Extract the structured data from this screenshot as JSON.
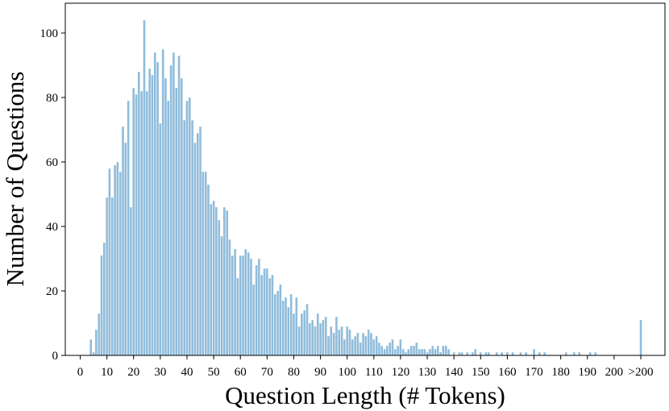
{
  "chart_data": {
    "type": "bar",
    "title": "",
    "xlabel": "Question Length (# Tokens)",
    "ylabel": "Number of Questions",
    "bar_color": "#8fbcdb",
    "bar_edge_color": "#ffffff",
    "grid": false,
    "xlim": [
      -3,
      206
    ],
    "ylim": [
      0,
      105
    ],
    "x_ticks": [
      {
        "value": 0,
        "label": "0"
      },
      {
        "value": 10,
        "label": "10"
      },
      {
        "value": 20,
        "label": "20"
      },
      {
        "value": 30,
        "label": "30"
      },
      {
        "value": 40,
        "label": "40"
      },
      {
        "value": 50,
        "label": "50"
      },
      {
        "value": 60,
        "label": "60"
      },
      {
        "value": 70,
        "label": "70"
      },
      {
        "value": 80,
        "label": "80"
      },
      {
        "value": 90,
        "label": "90"
      },
      {
        "value": 100,
        "label": "100"
      },
      {
        "value": 110,
        "label": "110"
      },
      {
        "value": 120,
        "label": "120"
      },
      {
        "value": 130,
        "label": "130"
      },
      {
        "value": 140,
        "label": "140"
      },
      {
        "value": 150,
        "label": "150"
      },
      {
        "value": 160,
        "label": "160"
      },
      {
        "value": 170,
        "label": "170"
      },
      {
        "value": 180,
        "label": "180"
      },
      {
        "value": 190,
        "label": "190"
      },
      {
        "value": 200,
        "label": "200"
      },
      {
        "value": 210,
        "label": ">200"
      }
    ],
    "y_ticks": [
      0,
      20,
      40,
      60,
      80,
      100
    ],
    "data": [
      [
        4,
        5
      ],
      [
        5,
        1
      ],
      [
        6,
        8
      ],
      [
        7,
        13
      ],
      [
        8,
        31
      ],
      [
        9,
        35
      ],
      [
        10,
        49
      ],
      [
        11,
        58
      ],
      [
        12,
        49
      ],
      [
        13,
        59
      ],
      [
        14,
        60
      ],
      [
        15,
        57
      ],
      [
        16,
        71
      ],
      [
        17,
        66
      ],
      [
        18,
        79
      ],
      [
        19,
        46
      ],
      [
        20,
        83
      ],
      [
        21,
        81
      ],
      [
        22,
        88
      ],
      [
        23,
        82
      ],
      [
        24,
        104
      ],
      [
        25,
        82
      ],
      [
        26,
        89
      ],
      [
        27,
        87
      ],
      [
        28,
        94
      ],
      [
        29,
        91
      ],
      [
        30,
        72
      ],
      [
        31,
        95
      ],
      [
        32,
        86
      ],
      [
        33,
        79
      ],
      [
        34,
        90
      ],
      [
        35,
        94
      ],
      [
        36,
        83
      ],
      [
        37,
        93
      ],
      [
        38,
        86
      ],
      [
        39,
        73
      ],
      [
        40,
        79
      ],
      [
        41,
        80
      ],
      [
        42,
        73
      ],
      [
        43,
        66
      ],
      [
        44,
        69
      ],
      [
        45,
        71
      ],
      [
        46,
        57
      ],
      [
        47,
        57
      ],
      [
        48,
        53
      ],
      [
        49,
        47
      ],
      [
        50,
        48
      ],
      [
        51,
        46
      ],
      [
        52,
        42
      ],
      [
        53,
        37
      ],
      [
        54,
        46
      ],
      [
        55,
        45
      ],
      [
        56,
        36
      ],
      [
        57,
        31
      ],
      [
        58,
        33
      ],
      [
        59,
        24
      ],
      [
        60,
        31
      ],
      [
        61,
        31
      ],
      [
        62,
        33
      ],
      [
        63,
        32
      ],
      [
        64,
        30
      ],
      [
        65,
        22
      ],
      [
        66,
        28
      ],
      [
        67,
        30
      ],
      [
        68,
        25
      ],
      [
        69,
        27
      ],
      [
        70,
        27
      ],
      [
        71,
        24
      ],
      [
        72,
        25
      ],
      [
        73,
        19
      ],
      [
        74,
        20
      ],
      [
        75,
        22
      ],
      [
        76,
        17
      ],
      [
        77,
        18
      ],
      [
        78,
        15
      ],
      [
        79,
        19
      ],
      [
        80,
        13
      ],
      [
        81,
        18
      ],
      [
        82,
        9
      ],
      [
        83,
        13
      ],
      [
        84,
        14
      ],
      [
        85,
        16
      ],
      [
        86,
        10
      ],
      [
        87,
        11
      ],
      [
        88,
        9
      ],
      [
        89,
        13
      ],
      [
        90,
        10
      ],
      [
        91,
        11
      ],
      [
        92,
        12
      ],
      [
        93,
        6
      ],
      [
        94,
        9
      ],
      [
        95,
        7
      ],
      [
        96,
        12
      ],
      [
        97,
        8
      ],
      [
        98,
        9
      ],
      [
        99,
        5
      ],
      [
        100,
        9
      ],
      [
        101,
        8
      ],
      [
        102,
        5
      ],
      [
        103,
        6
      ],
      [
        104,
        7
      ],
      [
        105,
        4
      ],
      [
        106,
        7
      ],
      [
        107,
        6
      ],
      [
        108,
        8
      ],
      [
        109,
        7
      ],
      [
        110,
        5
      ],
      [
        111,
        6
      ],
      [
        112,
        4
      ],
      [
        113,
        3
      ],
      [
        114,
        2
      ],
      [
        115,
        3
      ],
      [
        116,
        4
      ],
      [
        117,
        5
      ],
      [
        118,
        2
      ],
      [
        119,
        3
      ],
      [
        120,
        5
      ],
      [
        121,
        2
      ],
      [
        122,
        1
      ],
      [
        123,
        2
      ],
      [
        124,
        3
      ],
      [
        125,
        3
      ],
      [
        126,
        4
      ],
      [
        127,
        2
      ],
      [
        128,
        2
      ],
      [
        129,
        2
      ],
      [
        130,
        1
      ],
      [
        131,
        2
      ],
      [
        132,
        3
      ],
      [
        133,
        2
      ],
      [
        134,
        3
      ],
      [
        135,
        1
      ],
      [
        136,
        3
      ],
      [
        137,
        3
      ],
      [
        138,
        2
      ],
      [
        140,
        1
      ],
      [
        142,
        1
      ],
      [
        143,
        1
      ],
      [
        145,
        1
      ],
      [
        147,
        1
      ],
      [
        148,
        2
      ],
      [
        150,
        1
      ],
      [
        152,
        1
      ],
      [
        153,
        1
      ],
      [
        156,
        1
      ],
      [
        158,
        1
      ],
      [
        160,
        1
      ],
      [
        162,
        1
      ],
      [
        165,
        1
      ],
      [
        167,
        1
      ],
      [
        170,
        2
      ],
      [
        172,
        1
      ],
      [
        174,
        1
      ],
      [
        182,
        1
      ],
      [
        185,
        1
      ],
      [
        187,
        1
      ],
      [
        191,
        1
      ],
      [
        193,
        1
      ],
      [
        210,
        11
      ]
    ]
  }
}
